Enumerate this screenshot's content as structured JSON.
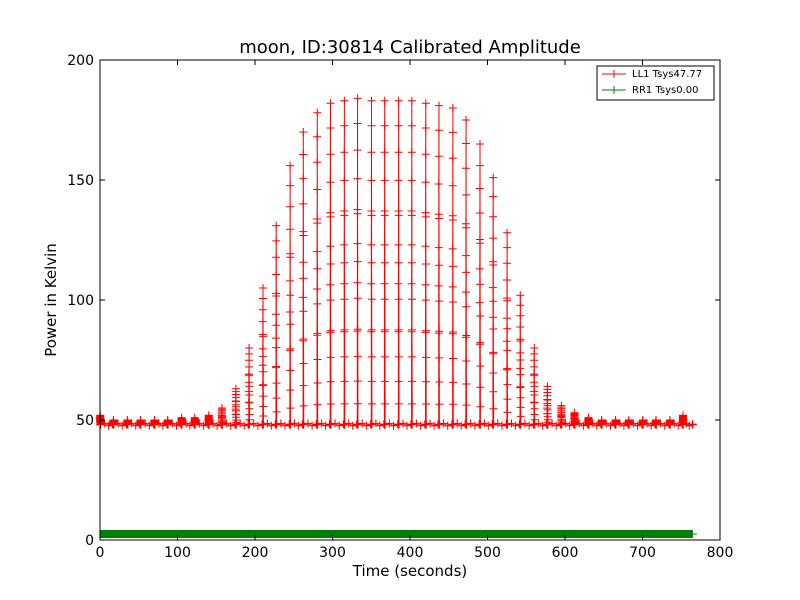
{
  "chart_data": {
    "type": "line",
    "title": "moon, ID:30814 Calibrated Amplitude",
    "xlabel": "Time (seconds)",
    "ylabel": "Power in Kelvin",
    "xlim": [
      0,
      800
    ],
    "ylim": [
      0,
      200
    ],
    "xticks": [
      "0",
      "100",
      "200",
      "300",
      "400",
      "500",
      "600",
      "700",
      "800"
    ],
    "yticks": [
      "0",
      "50",
      "100",
      "150",
      "200"
    ],
    "grid": false,
    "legend_position": "top-right",
    "series": [
      {
        "name": "LL1 Tsys47.77",
        "color": "#ff0000",
        "marker": "+",
        "baseline": 48,
        "sweep_times": [
          0,
          17,
          35,
          52,
          70,
          87,
          105,
          122,
          140,
          157,
          175,
          192,
          210,
          227,
          245,
          262,
          280,
          297,
          315,
          332,
          350,
          367,
          385,
          402,
          420,
          437,
          455,
          472,
          490,
          507,
          525,
          542,
          560,
          577,
          595,
          612,
          630,
          647,
          665,
          682,
          700,
          717,
          735,
          752
        ],
        "sweep_peaks": [
          52,
          50,
          50,
          50,
          50,
          50,
          51,
          51,
          52,
          55,
          63,
          80,
          105,
          131,
          156,
          170,
          178,
          182,
          183,
          184,
          183,
          183,
          183,
          183,
          182,
          181,
          180,
          175,
          165,
          151,
          128,
          102,
          80,
          64,
          56,
          53,
          51,
          50,
          50,
          50,
          50,
          50,
          50,
          52
        ],
        "end_time": 765
      },
      {
        "name": "RR1 Tsys0.00",
        "color": "#008000",
        "marker": "+",
        "constant_value": 2.5,
        "x_range": [
          0,
          765
        ]
      }
    ]
  }
}
